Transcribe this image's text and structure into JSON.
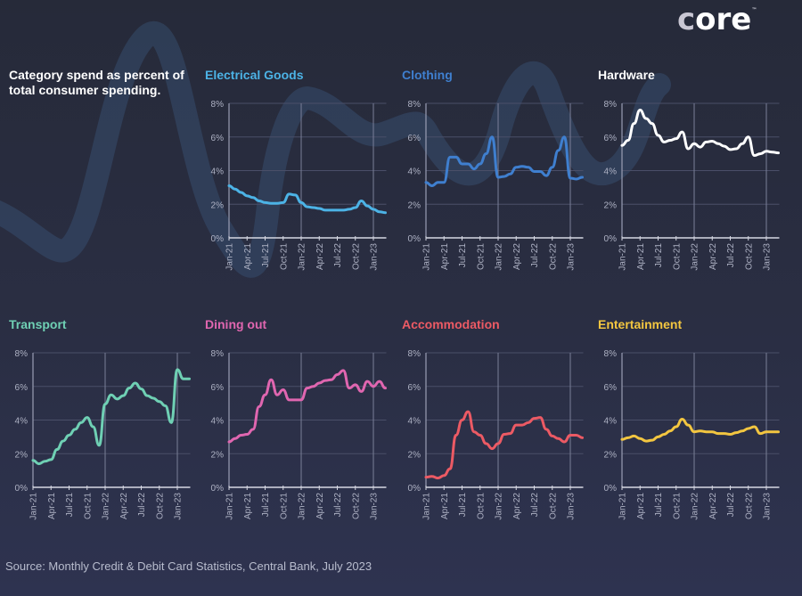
{
  "logo": {
    "text_first": "c",
    "text_rest": "ore",
    "trademark": "™"
  },
  "headline": "Category spend as percent of total consumer spending.",
  "source": "Source: Monthly Credit & Debit Card Statistics, Central Bank, July 2023",
  "chart_data": [
    {
      "type": "line",
      "title": "Electrical Goods",
      "color": "#4cb3e6",
      "ylabel": "",
      "xlabel": "",
      "ylim": [
        0,
        8
      ],
      "yticks": [
        "0%",
        "2%",
        "4%",
        "6%",
        "8%"
      ],
      "xticks": [
        "Jan-21",
        "Apr-21",
        "Jul-21",
        "Oct-21",
        "Jan-22",
        "Apr-22",
        "Jul-22",
        "Oct-22",
        "Jan-23"
      ],
      "x_start": "Jan-21",
      "x_end": "Mar-23",
      "frequency": "monthly",
      "values": [
        3.1,
        2.9,
        2.7,
        2.5,
        2.4,
        2.2,
        2.1,
        2.05,
        2.05,
        2.1,
        2.6,
        2.55,
        2.1,
        1.85,
        1.8,
        1.75,
        1.65,
        1.65,
        1.65,
        1.65,
        1.7,
        1.8,
        2.2,
        1.9,
        1.7,
        1.55,
        1.5
      ]
    },
    {
      "type": "line",
      "title": "Clothing",
      "color": "#3f7fcf",
      "ylim": [
        0,
        8
      ],
      "yticks": [
        "0%",
        "2%",
        "4%",
        "6%",
        "8%"
      ],
      "xticks": [
        "Jan-21",
        "Apr-21",
        "Jul-21",
        "Oct-21",
        "Jan-22",
        "Apr-22",
        "Jul-22",
        "Oct-22",
        "Jan-23"
      ],
      "x_start": "Jan-21",
      "x_end": "Mar-23",
      "frequency": "monthly",
      "values": [
        3.3,
        3.1,
        3.3,
        3.3,
        4.8,
        4.8,
        4.4,
        4.4,
        4.1,
        4.4,
        5.0,
        6.0,
        3.6,
        3.65,
        3.8,
        4.2,
        4.25,
        4.2,
        3.95,
        3.95,
        3.7,
        4.2,
        5.2,
        6.0,
        3.55,
        3.5,
        3.6
      ]
    },
    {
      "type": "line",
      "title": "Hardware",
      "color": "#ffffff",
      "ylim": [
        0,
        8
      ],
      "yticks": [
        "0%",
        "2%",
        "4%",
        "6%",
        "8%"
      ],
      "xticks": [
        "Jan-21",
        "Apr-21",
        "Jul-21",
        "Oct-21",
        "Jan-22",
        "Apr-22",
        "Jul-22",
        "Oct-22",
        "Jan-23"
      ],
      "x_start": "Jan-21",
      "x_end": "Mar-23",
      "frequency": "monthly",
      "values": [
        5.5,
        5.8,
        6.8,
        7.6,
        7.1,
        6.8,
        6.1,
        5.7,
        5.8,
        5.9,
        6.3,
        5.3,
        5.6,
        5.4,
        5.7,
        5.75,
        5.6,
        5.45,
        5.25,
        5.3,
        5.6,
        6.0,
        4.9,
        5.0,
        5.15,
        5.1,
        5.05
      ]
    },
    {
      "type": "line",
      "title": "Transport",
      "color": "#6fd0b4",
      "ylim": [
        0,
        8
      ],
      "yticks": [
        "0%",
        "2%",
        "4%",
        "6%",
        "8%"
      ],
      "xticks": [
        "Jan-21",
        "Apr-21",
        "Jul-21",
        "Oct-21",
        "Jan-22",
        "Apr-22",
        "Jul-22",
        "Oct-22",
        "Jan-23"
      ],
      "x_start": "Jan-21",
      "x_end": "Mar-23",
      "frequency": "monthly",
      "values": [
        1.6,
        1.4,
        1.55,
        1.65,
        2.25,
        2.75,
        3.1,
        3.45,
        3.85,
        4.15,
        3.6,
        2.5,
        4.95,
        5.5,
        5.25,
        5.45,
        5.9,
        6.2,
        5.85,
        5.45,
        5.3,
        5.1,
        4.85,
        3.85,
        7.0,
        6.45,
        6.45
      ]
    },
    {
      "type": "line",
      "title": "Dining out",
      "color": "#e066b0",
      "ylim": [
        0,
        8
      ],
      "yticks": [
        "0%",
        "2%",
        "4%",
        "6%",
        "8%"
      ],
      "xticks": [
        "Jan-21",
        "Apr-21",
        "Jul-21",
        "Oct-21",
        "Jan-22",
        "Apr-22",
        "Jul-22",
        "Oct-22",
        "Jan-23"
      ],
      "x_start": "Jan-21",
      "x_end": "Mar-23",
      "frequency": "monthly",
      "values": [
        2.7,
        2.9,
        3.1,
        3.15,
        3.45,
        4.8,
        5.5,
        6.4,
        5.5,
        5.8,
        5.2,
        5.2,
        5.2,
        5.9,
        6.0,
        6.2,
        6.35,
        6.4,
        6.7,
        6.95,
        5.9,
        6.1,
        5.7,
        6.3,
        6.0,
        6.3,
        5.9
      ]
    },
    {
      "type": "line",
      "title": "Accommodation",
      "color": "#ec5a64",
      "ylim": [
        0,
        8
      ],
      "yticks": [
        "0%",
        "2%",
        "4%",
        "6%",
        "8%"
      ],
      "xticks": [
        "Jan-21",
        "Apr-21",
        "Jul-21",
        "Oct-21",
        "Jan-22",
        "Apr-22",
        "Jul-22",
        "Oct-22",
        "Jan-23"
      ],
      "x_start": "Jan-21",
      "x_end": "Mar-23",
      "frequency": "monthly",
      "values": [
        0.6,
        0.65,
        0.55,
        0.7,
        1.1,
        3.1,
        4.0,
        4.5,
        3.3,
        3.1,
        2.6,
        2.3,
        2.6,
        3.15,
        3.2,
        3.7,
        3.7,
        3.85,
        4.1,
        4.15,
        3.45,
        3.05,
        2.9,
        2.7,
        3.1,
        3.1,
        2.95
      ]
    },
    {
      "type": "line",
      "title": "Entertainment",
      "color": "#f3c640",
      "ylim": [
        0,
        8
      ],
      "yticks": [
        "0%",
        "2%",
        "4%",
        "6%",
        "8%"
      ],
      "xticks": [
        "Jan-21",
        "Apr-21",
        "Jul-21",
        "Oct-21",
        "Jan-22",
        "Apr-22",
        "Jul-22",
        "Oct-22",
        "Jan-23"
      ],
      "x_start": "Jan-21",
      "x_end": "Mar-23",
      "frequency": "monthly",
      "values": [
        2.85,
        2.95,
        3.05,
        2.9,
        2.75,
        2.8,
        3.0,
        3.15,
        3.35,
        3.6,
        4.05,
        3.7,
        3.3,
        3.35,
        3.3,
        3.3,
        3.2,
        3.2,
        3.15,
        3.25,
        3.35,
        3.5,
        3.6,
        3.2,
        3.3,
        3.3,
        3.3
      ]
    }
  ]
}
